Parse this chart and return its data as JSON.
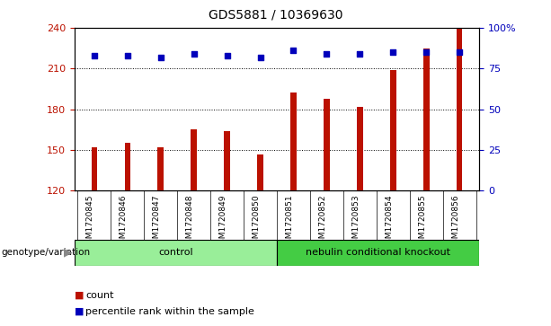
{
  "title": "GDS5881 / 10369630",
  "samples": [
    "GSM1720845",
    "GSM1720846",
    "GSM1720847",
    "GSM1720848",
    "GSM1720849",
    "GSM1720850",
    "GSM1720851",
    "GSM1720852",
    "GSM1720853",
    "GSM1720854",
    "GSM1720855",
    "GSM1720856"
  ],
  "counts": [
    152,
    155,
    152,
    165,
    164,
    147,
    192,
    188,
    182,
    209,
    225,
    239
  ],
  "percentiles": [
    83,
    83,
    82,
    84,
    83,
    82,
    86,
    84,
    84,
    85,
    85,
    85
  ],
  "groups": [
    {
      "label": "control",
      "start": 0,
      "end": 6,
      "color": "#99ee99"
    },
    {
      "label": "nebulin conditional knockout",
      "start": 6,
      "end": 12,
      "color": "#44cc44"
    }
  ],
  "bar_color": "#bb1100",
  "dot_color": "#0000bb",
  "ylim_left": [
    120,
    240
  ],
  "ylim_right": [
    0,
    100
  ],
  "yticks_left": [
    120,
    150,
    180,
    210,
    240
  ],
  "yticks_right": [
    0,
    25,
    50,
    75,
    100
  ],
  "grid_lines": [
    150,
    180,
    210
  ],
  "legend_count_label": "count",
  "legend_pct_label": "percentile rank within the sample",
  "group_label": "genotype/variation",
  "background_color": "#ffffff",
  "axes_bg": "#ffffff",
  "tick_area_bg": "#cccccc",
  "bar_width": 0.18
}
